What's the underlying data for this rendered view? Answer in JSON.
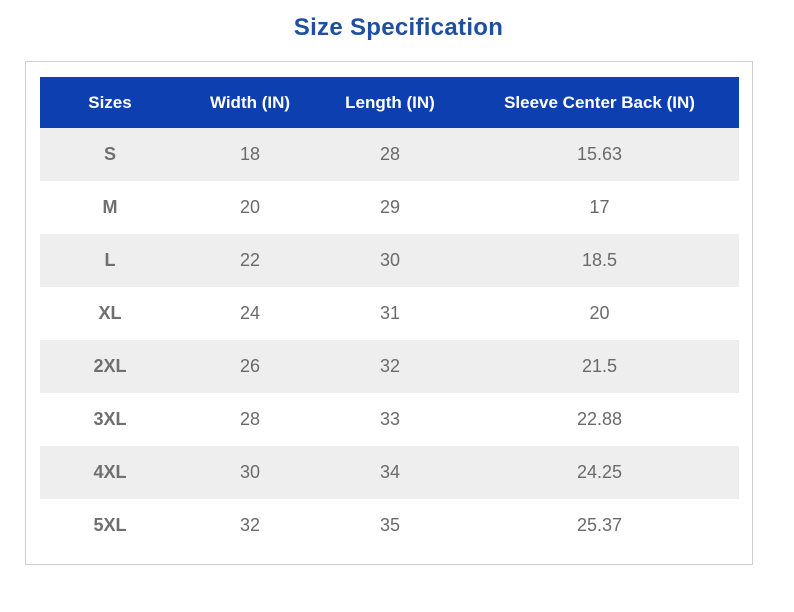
{
  "title": "Size Specification",
  "colors": {
    "title": "#1f4fa0",
    "header_background": "#0d3fb0",
    "header_text": "#ffffff",
    "stripe": "#eeeeee",
    "cell_text": "#6a6a6a"
  },
  "table": {
    "headers": [
      "Sizes",
      "Width (IN)",
      "Length (IN)",
      "Sleeve Center Back (IN)"
    ],
    "rows": [
      [
        "S",
        "18",
        "28",
        "15.63"
      ],
      [
        "M",
        "20",
        "29",
        "17"
      ],
      [
        "L",
        "22",
        "30",
        "18.5"
      ],
      [
        "XL",
        "24",
        "31",
        "20"
      ],
      [
        "2XL",
        "26",
        "32",
        "21.5"
      ],
      [
        "3XL",
        "28",
        "33",
        "22.88"
      ],
      [
        "4XL",
        "30",
        "34",
        "24.25"
      ],
      [
        "5XL",
        "32",
        "35",
        "25.37"
      ]
    ]
  }
}
